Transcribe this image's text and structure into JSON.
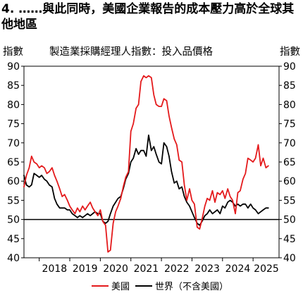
{
  "title": "4. ……與此同時，美國企業報告的成本壓力高於全球其他地區",
  "subtitle": "製造業採購經理人指數：投入品價格",
  "unit_left": "指數",
  "unit_right": "指數",
  "chart_data": {
    "type": "line",
    "title": "製造業採購經理人指數：投入品價格",
    "ylabel": "指數",
    "ylim": [
      40,
      90
    ],
    "yticks": [
      40,
      45,
      50,
      55,
      60,
      65,
      70,
      75,
      80,
      85,
      90
    ],
    "xlim": [
      2017.5,
      2025.85
    ],
    "xtick_labels": [
      "2018",
      "2019",
      "2020",
      "2021",
      "2022",
      "2023",
      "2024",
      "2025"
    ],
    "reference_line": 50,
    "grid": false,
    "legend_position": "bottom",
    "series": [
      {
        "name": "美國",
        "color": "#e41a1c",
        "x": [
          2017.5,
          2017.58,
          2017.67,
          2017.75,
          2017.83,
          2017.92,
          2018.0,
          2018.08,
          2018.17,
          2018.25,
          2018.33,
          2018.42,
          2018.5,
          2018.58,
          2018.67,
          2018.75,
          2018.83,
          2018.92,
          2019.0,
          2019.08,
          2019.17,
          2019.25,
          2019.33,
          2019.42,
          2019.5,
          2019.58,
          2019.67,
          2019.75,
          2019.83,
          2019.92,
          2020.0,
          2020.08,
          2020.17,
          2020.25,
          2020.33,
          2020.42,
          2020.5,
          2020.58,
          2020.67,
          2020.75,
          2020.83,
          2020.92,
          2021.0,
          2021.08,
          2021.17,
          2021.25,
          2021.33,
          2021.42,
          2021.5,
          2021.58,
          2021.67,
          2021.75,
          2021.83,
          2021.92,
          2022.0,
          2022.08,
          2022.17,
          2022.25,
          2022.33,
          2022.42,
          2022.5,
          2022.58,
          2022.67,
          2022.75,
          2022.83,
          2022.92,
          2023.0,
          2023.08,
          2023.17,
          2023.25,
          2023.33,
          2023.42,
          2023.5,
          2023.58,
          2023.67,
          2023.75,
          2023.83,
          2023.92,
          2024.0,
          2024.08,
          2024.17,
          2024.25,
          2024.33,
          2024.42,
          2024.5,
          2024.58,
          2024.67,
          2024.75,
          2024.83,
          2024.92,
          2025.0,
          2025.08,
          2025.17,
          2025.25,
          2025.33,
          2025.42,
          2025.5
        ],
        "values": [
          58.5,
          61.5,
          63.5,
          66.5,
          65.0,
          64.5,
          63.5,
          64.0,
          63.5,
          62.0,
          62.5,
          63.5,
          61.5,
          60.0,
          58.0,
          56.0,
          56.5,
          55.0,
          53.5,
          52.5,
          51.5,
          53.0,
          52.0,
          53.5,
          52.5,
          53.5,
          54.5,
          53.0,
          52.0,
          51.0,
          52.5,
          49.5,
          48.5,
          41.5,
          42.0,
          49.0,
          52.0,
          53.5,
          55.5,
          58.5,
          61.0,
          62.5,
          73.0,
          75.0,
          79.0,
          80.0,
          86.0,
          87.5,
          87.0,
          87.5,
          87.0,
          82.5,
          80.0,
          79.5,
          79.5,
          81.5,
          81.0,
          77.0,
          74.0,
          71.0,
          69.5,
          65.5,
          65.0,
          59.0,
          55.0,
          58.0,
          55.0,
          54.0,
          48.0,
          47.5,
          50.0,
          53.5,
          55.5,
          55.0,
          57.5,
          54.5,
          57.0,
          56.5,
          57.5,
          55.5,
          58.0,
          56.0,
          55.0,
          51.5,
          57.0,
          57.5,
          60.5,
          62.0,
          66.0,
          65.5,
          65.0,
          66.0,
          69.5,
          64.0,
          66.0,
          63.5,
          64.0
        ]
      },
      {
        "name": "世界（不含美國）",
        "color": "#000000",
        "x": [
          2017.5,
          2017.58,
          2017.67,
          2017.75,
          2017.83,
          2017.92,
          2018.0,
          2018.08,
          2018.17,
          2018.25,
          2018.33,
          2018.42,
          2018.5,
          2018.58,
          2018.67,
          2018.75,
          2018.83,
          2018.92,
          2019.0,
          2019.08,
          2019.17,
          2019.25,
          2019.33,
          2019.42,
          2019.5,
          2019.58,
          2019.67,
          2019.75,
          2019.83,
          2019.92,
          2020.0,
          2020.08,
          2020.17,
          2020.25,
          2020.33,
          2020.42,
          2020.5,
          2020.58,
          2020.67,
          2020.75,
          2020.83,
          2020.92,
          2021.0,
          2021.08,
          2021.17,
          2021.25,
          2021.33,
          2021.42,
          2021.5,
          2021.58,
          2021.67,
          2021.75,
          2021.83,
          2021.92,
          2022.0,
          2022.08,
          2022.17,
          2022.25,
          2022.33,
          2022.42,
          2022.5,
          2022.58,
          2022.67,
          2022.75,
          2022.83,
          2022.92,
          2023.0,
          2023.08,
          2023.17,
          2023.25,
          2023.33,
          2023.42,
          2023.5,
          2023.58,
          2023.67,
          2023.75,
          2023.83,
          2023.92,
          2024.0,
          2024.08,
          2024.17,
          2024.25,
          2024.33,
          2024.42,
          2024.5,
          2024.58,
          2024.67,
          2024.75,
          2024.83,
          2024.92,
          2025.0,
          2025.08,
          2025.17,
          2025.25,
          2025.33,
          2025.42,
          2025.5
        ],
        "values": [
          61.5,
          59.0,
          58.5,
          59.0,
          62.0,
          61.5,
          61.0,
          61.5,
          60.5,
          60.0,
          59.0,
          58.5,
          55.5,
          54.0,
          53.0,
          53.0,
          53.0,
          52.5,
          52.5,
          51.5,
          51.0,
          50.5,
          51.0,
          50.5,
          51.0,
          51.5,
          51.0,
          51.5,
          52.0,
          51.5,
          51.5,
          49.5,
          49.0,
          49.5,
          51.5,
          53.5,
          54.5,
          55.5,
          56.0,
          58.0,
          60.5,
          62.0,
          65.0,
          66.0,
          68.5,
          67.0,
          68.0,
          68.0,
          66.5,
          72.0,
          68.0,
          69.0,
          67.0,
          65.0,
          64.5,
          70.0,
          69.0,
          66.5,
          62.5,
          59.5,
          60.0,
          58.0,
          58.5,
          56.0,
          54.5,
          53.5,
          52.0,
          50.5,
          49.0,
          48.5,
          49.5,
          51.0,
          51.5,
          52.5,
          51.5,
          52.0,
          52.5,
          51.5,
          53.5,
          53.0,
          54.5,
          55.0,
          54.5,
          53.5,
          54.0,
          53.5,
          54.0,
          54.0,
          53.0,
          54.0,
          53.0,
          52.5,
          51.5,
          52.0,
          52.5,
          53.0,
          53.0
        ]
      }
    ]
  }
}
